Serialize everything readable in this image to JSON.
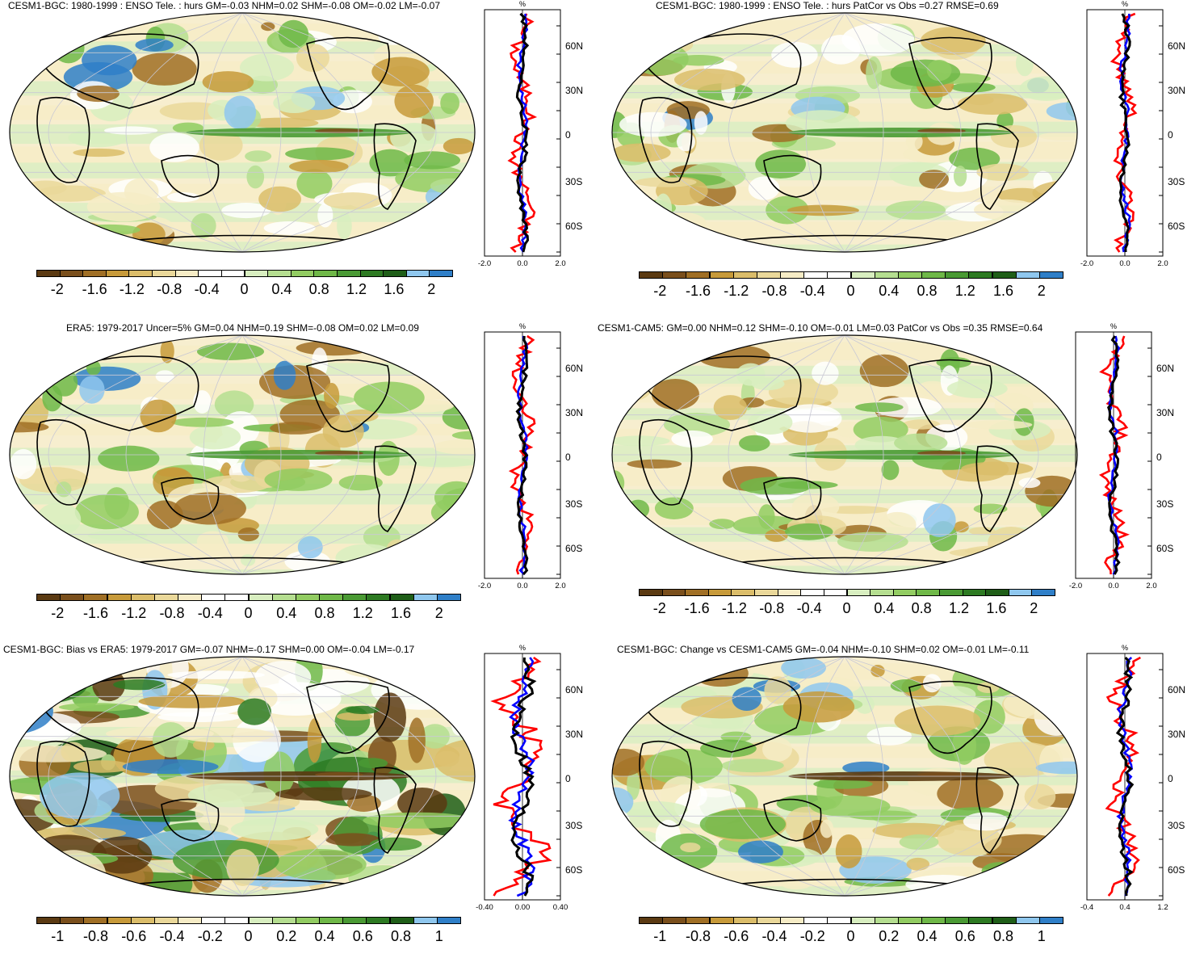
{
  "panels": [
    {
      "title": "CESM1-BGC: 1980-1999 : ENSO Tele. : hurs GM=-0.03 NHM=0.02 SHM=-0.08 OM=-0.02 LM=-0.07",
      "colorbar_labels": [
        "-2",
        "-1.6",
        "-1.2",
        "-0.8",
        "-0.4",
        "0",
        "0.4",
        "0.8",
        "1.2",
        "1.6",
        "2"
      ],
      "profile_xlabels": [
        "-2.0",
        "0.0",
        "2.0"
      ],
      "profile_unit": "%",
      "lat_labels": [
        "60N",
        "30N",
        "0",
        "30S",
        "60S"
      ]
    },
    {
      "title": "CESM1-BGC: 1980-1999 : ENSO Tele. : hurs PatCor vs Obs =0.27 RMSE=0.69",
      "colorbar_labels": [
        "-2",
        "-1.6",
        "-1.2",
        "-0.8",
        "-0.4",
        "0",
        "0.4",
        "0.8",
        "1.2",
        "1.6",
        "2"
      ],
      "profile_xlabels": [
        "-2.0",
        "0.0",
        "2.0"
      ],
      "profile_unit": "%",
      "lat_labels": [
        "60N",
        "30N",
        "0",
        "30S",
        "60S"
      ]
    },
    {
      "title": "ERA5: 1979-2017 Uncer=5% GM=0.04 NHM=0.19 SHM=-0.08 OM=0.02 LM=0.09",
      "colorbar_labels": [
        "-2",
        "-1.6",
        "-1.2",
        "-0.8",
        "-0.4",
        "0",
        "0.4",
        "0.8",
        "1.2",
        "1.6",
        "2"
      ],
      "profile_xlabels": [
        "-2.0",
        "0.0",
        "2.0"
      ],
      "profile_unit": "%",
      "lat_labels": [
        "60N",
        "30N",
        "0",
        "30S",
        "60S"
      ]
    },
    {
      "title": "CESM1-CAM5: GM=0.00 NHM=0.12 SHM=-0.10 OM=-0.01 LM=0.03 PatCor vs Obs =0.35 RMSE=0.64",
      "colorbar_labels": [
        "-2",
        "-1.6",
        "-1.2",
        "-0.8",
        "-0.4",
        "0",
        "0.4",
        "0.8",
        "1.2",
        "1.6",
        "2"
      ],
      "profile_xlabels": [
        "-2.0",
        "0.0",
        "2.0"
      ],
      "profile_unit": "%",
      "lat_labels": [
        "60N",
        "30N",
        "0",
        "30S",
        "60S"
      ]
    },
    {
      "title": "CESM1-BGC: Bias vs ERA5: 1979-2017 GM=-0.07 NHM=-0.17 SHM=0.00 OM=-0.04 LM=-0.17",
      "colorbar_labels": [
        "-1",
        "-0.8",
        "-0.6",
        "-0.4",
        "-0.2",
        "0",
        "0.2",
        "0.4",
        "0.6",
        "0.8",
        "1"
      ],
      "profile_xlabels": [
        "-0.40",
        "0.00",
        "0.40"
      ],
      "profile_unit": "%",
      "lat_labels": [
        "60N",
        "30N",
        "0",
        "30S",
        "60S"
      ]
    },
    {
      "title": "CESM1-BGC: Change vs CESM1-CAM5 GM=-0.04 NHM=-0.10 SHM=0.02 OM=-0.01 LM=-0.11",
      "colorbar_labels": [
        "-1",
        "-0.8",
        "-0.6",
        "-0.4",
        "-0.2",
        "0",
        "0.2",
        "0.4",
        "0.6",
        "0.8",
        "1"
      ],
      "profile_xlabels": [
        "-0.4",
        "0.4",
        "1.2"
      ],
      "profile_unit": "%",
      "lat_labels": [
        "60N",
        "30N",
        "0",
        "30S",
        "60S"
      ]
    }
  ],
  "palette": [
    "#5b3a12",
    "#7a4f1c",
    "#a06f25",
    "#c79a3a",
    "#dbbd6a",
    "#ead89a",
    "#f6ecc6",
    "#ffffff",
    "#ffffff",
    "#d8eec0",
    "#b5de90",
    "#92cc62",
    "#6fb848",
    "#4a9a34",
    "#2d7a22",
    "#1f5e18",
    "#8fc7ee",
    "#2f7fc8"
  ],
  "profile_colors": {
    "model": "#000000",
    "land": "#ff0000",
    "ocean": "#0000ff"
  }
}
